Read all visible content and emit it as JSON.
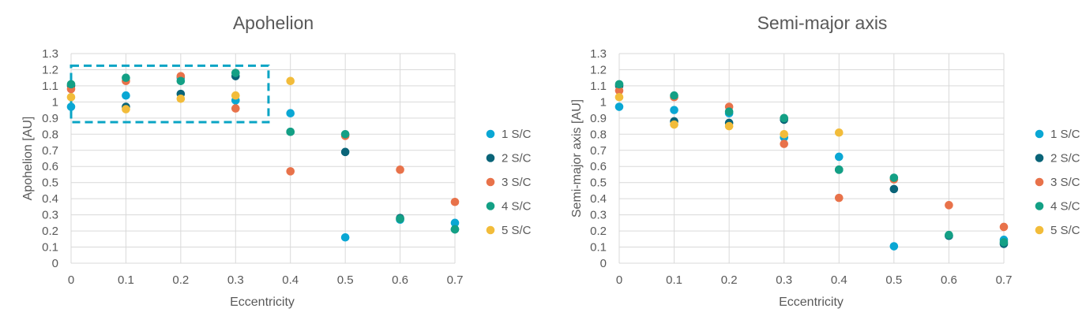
{
  "chart_data": [
    {
      "type": "scatter",
      "title": "Apohelion",
      "xlabel": "Eccentricity",
      "ylabel": "Apohelion [AU]",
      "xlim": [
        0,
        0.7
      ],
      "ylim": [
        0,
        1.3
      ],
      "x_ticks": [
        "0",
        "0.1",
        "0.2",
        "0.3",
        "0.4",
        "0.5",
        "0.6",
        "0.7"
      ],
      "y_ticks": [
        "0",
        "0.1",
        "0.2",
        "0.3",
        "0.4",
        "0.5",
        "0.6",
        "0.7",
        "0.8",
        "0.9",
        "1",
        "1.1",
        "1.2",
        "1.3"
      ],
      "grid": true,
      "legend": "right",
      "highlight_box": {
        "x": [
          0,
          0.36
        ],
        "y": [
          0.875,
          1.225
        ],
        "color": "#0aa4c4",
        "style": "dashed"
      },
      "series": [
        {
          "name": "1 S/C",
          "color": "#0aa7d4",
          "points": [
            [
              0,
              0.97
            ],
            [
              0.1,
              1.04
            ],
            [
              0.2,
              1.15
            ],
            [
              0.3,
              1.01
            ],
            [
              0.4,
              0.93
            ],
            [
              0.5,
              0.16
            ],
            [
              0.6,
              0.27
            ],
            [
              0.7,
              0.25
            ]
          ]
        },
        {
          "name": "2 S/C",
          "color": "#0a6478",
          "points": [
            [
              0,
              1.1
            ],
            [
              0.1,
              0.97
            ],
            [
              0.2,
              1.05
            ],
            [
              0.3,
              1.16
            ],
            [
              0.4,
              0.815
            ],
            [
              0.5,
              0.69
            ],
            [
              0.6,
              0.28
            ],
            [
              0.7,
              0.21
            ]
          ]
        },
        {
          "name": "3 S/C",
          "color": "#e8724a",
          "points": [
            [
              0,
              1.08
            ],
            [
              0.1,
              1.13
            ],
            [
              0.2,
              1.16
            ],
            [
              0.3,
              0.96
            ],
            [
              0.4,
              0.57
            ],
            [
              0.5,
              0.79
            ],
            [
              0.6,
              0.58
            ],
            [
              0.7,
              0.38
            ]
          ]
        },
        {
          "name": "4 S/C",
          "color": "#13a085",
          "points": [
            [
              0,
              1.11
            ],
            [
              0.1,
              1.15
            ],
            [
              0.2,
              1.13
            ],
            [
              0.3,
              1.18
            ],
            [
              0.4,
              0.815
            ],
            [
              0.5,
              0.8
            ],
            [
              0.6,
              0.275
            ],
            [
              0.7,
              0.21
            ]
          ]
        },
        {
          "name": "5 S/C",
          "color": "#f2bc3a",
          "points": [
            [
              0,
              1.03
            ],
            [
              0.1,
              0.955
            ],
            [
              0.2,
              1.02
            ],
            [
              0.3,
              1.04
            ],
            [
              0.4,
              1.13
            ]
          ]
        }
      ]
    },
    {
      "type": "scatter",
      "title": "Semi-major axis",
      "xlabel": "Eccentricity",
      "ylabel": "Semi-major axis [AU]",
      "xlim": [
        0,
        0.7
      ],
      "ylim": [
        0,
        1.3
      ],
      "x_ticks": [
        "0",
        "0.1",
        "0.2",
        "0.3",
        "0.4",
        "0.5",
        "0.6",
        "0.7"
      ],
      "y_ticks": [
        "0",
        "0.1",
        "0.2",
        "0.3",
        "0.4",
        "0.5",
        "0.6",
        "0.7",
        "0.8",
        "0.9",
        "1",
        "1.1",
        "1.2",
        "1.3"
      ],
      "grid": true,
      "legend": "right",
      "series": [
        {
          "name": "1 S/C",
          "color": "#0aa7d4",
          "points": [
            [
              0,
              0.97
            ],
            [
              0.1,
              0.95
            ],
            [
              0.2,
              0.93
            ],
            [
              0.3,
              0.78
            ],
            [
              0.4,
              0.66
            ],
            [
              0.5,
              0.105
            ],
            [
              0.6,
              0.17
            ],
            [
              0.7,
              0.145
            ]
          ]
        },
        {
          "name": "2 S/C",
          "color": "#0a6478",
          "points": [
            [
              0,
              1.1
            ],
            [
              0.1,
              0.88
            ],
            [
              0.2,
              0.87
            ],
            [
              0.3,
              0.89
            ],
            [
              0.4,
              0.58
            ],
            [
              0.5,
              0.46
            ],
            [
              0.6,
              0.17
            ],
            [
              0.7,
              0.12
            ]
          ]
        },
        {
          "name": "3 S/C",
          "color": "#e8724a",
          "points": [
            [
              0,
              1.07
            ],
            [
              0.1,
              1.03
            ],
            [
              0.2,
              0.97
            ],
            [
              0.3,
              0.74
            ],
            [
              0.4,
              0.405
            ],
            [
              0.5,
              0.52
            ],
            [
              0.6,
              0.36
            ],
            [
              0.7,
              0.225
            ]
          ]
        },
        {
          "name": "4 S/C",
          "color": "#13a085",
          "points": [
            [
              0,
              1.11
            ],
            [
              0.1,
              1.04
            ],
            [
              0.2,
              0.94
            ],
            [
              0.3,
              0.9
            ],
            [
              0.4,
              0.58
            ],
            [
              0.5,
              0.53
            ],
            [
              0.6,
              0.175
            ],
            [
              0.7,
              0.13
            ]
          ]
        },
        {
          "name": "5 S/C",
          "color": "#f2bc3a",
          "points": [
            [
              0,
              1.03
            ],
            [
              0.1,
              0.86
            ],
            [
              0.2,
              0.85
            ],
            [
              0.3,
              0.8
            ],
            [
              0.4,
              0.81
            ]
          ]
        }
      ]
    }
  ]
}
